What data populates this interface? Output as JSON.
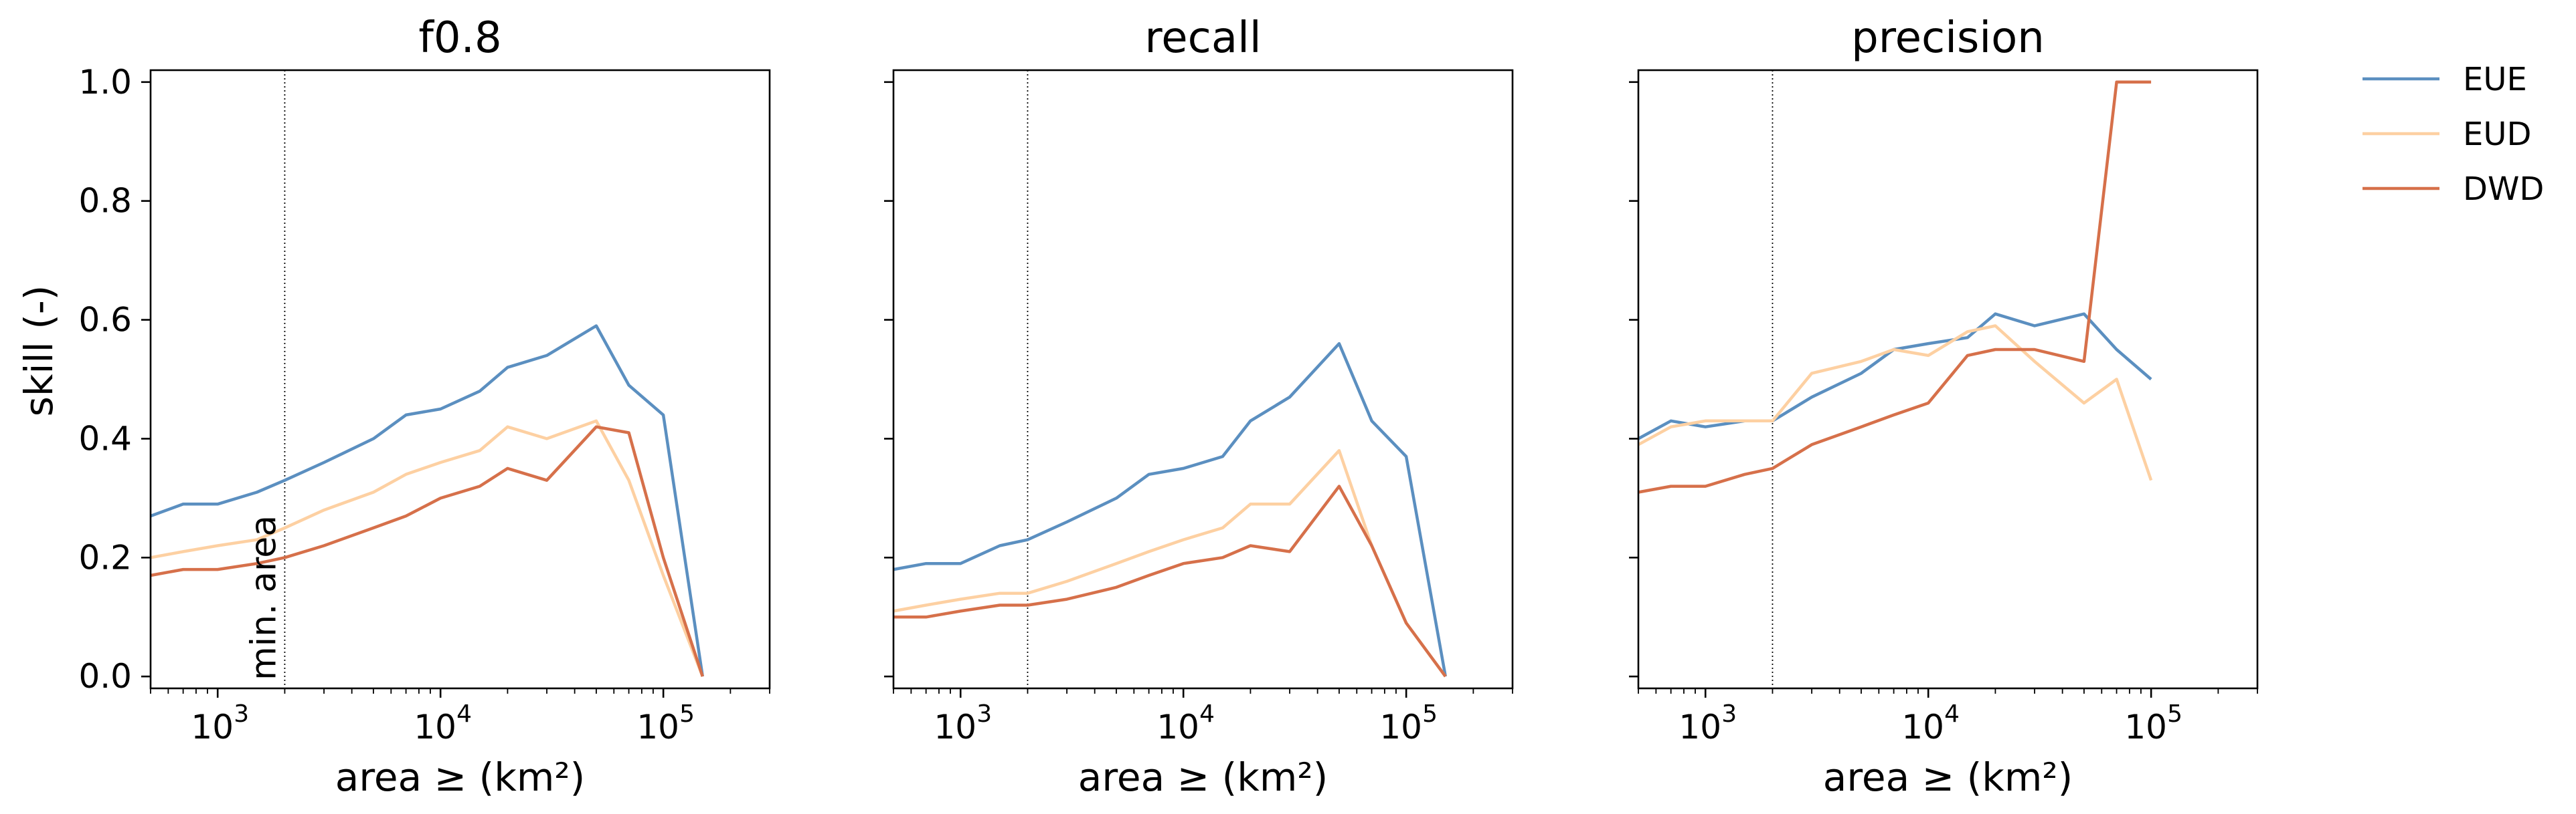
{
  "chart_data": {
    "type": "line",
    "x_axis": {
      "label": "area ≥ (km²)",
      "scale": "log",
      "range": [
        500,
        300000
      ],
      "ticks": [
        1000,
        10000,
        100000
      ],
      "tick_labels": [
        "10",
        "10",
        "10"
      ],
      "tick_exponents": [
        "3",
        "4",
        "5"
      ]
    },
    "y_axis": {
      "label": "skill (-)",
      "range": [
        -0.02,
        1.02
      ],
      "ticks": [
        0.0,
        0.2,
        0.4,
        0.6,
        0.8,
        1.0
      ],
      "tick_labels": [
        "0.0",
        "0.2",
        "0.4",
        "0.6",
        "0.8",
        "1.0"
      ]
    },
    "min_area_line": {
      "x": 2000,
      "label": "min. area"
    },
    "grid": false,
    "legend": {
      "placement": "outside-right"
    },
    "colors": {
      "EUE": "#5b8fc0",
      "EUD": "#fdd0a2",
      "DWD": "#d6704a"
    },
    "panels": [
      {
        "title": "f0.8",
        "series": [
          {
            "name": "EUE",
            "x": [
              500,
              700,
              1000,
              1500,
              2000,
              3000,
              5000,
              7000,
              10000,
              15000,
              20000,
              30000,
              50000,
              70000,
              100000,
              150000
            ],
            "y": [
              0.27,
              0.29,
              0.29,
              0.31,
              0.33,
              0.36,
              0.4,
              0.44,
              0.45,
              0.48,
              0.52,
              0.54,
              0.59,
              0.49,
              0.44,
              0.0
            ]
          },
          {
            "name": "EUD",
            "x": [
              500,
              700,
              1000,
              1500,
              2000,
              3000,
              5000,
              7000,
              10000,
              15000,
              20000,
              30000,
              50000,
              70000,
              100000,
              150000
            ],
            "y": [
              0.2,
              0.21,
              0.22,
              0.23,
              0.25,
              0.28,
              0.31,
              0.34,
              0.36,
              0.38,
              0.42,
              0.4,
              0.43,
              0.33,
              0.17,
              0.0
            ]
          },
          {
            "name": "DWD",
            "x": [
              500,
              700,
              1000,
              1500,
              2000,
              3000,
              5000,
              7000,
              10000,
              15000,
              20000,
              30000,
              50000,
              70000,
              100000,
              150000
            ],
            "y": [
              0.17,
              0.18,
              0.18,
              0.19,
              0.2,
              0.22,
              0.25,
              0.27,
              0.3,
              0.32,
              0.35,
              0.33,
              0.42,
              0.41,
              0.2,
              0.0
            ]
          }
        ]
      },
      {
        "title": "recall",
        "series": [
          {
            "name": "EUE",
            "x": [
              500,
              700,
              1000,
              1500,
              2000,
              3000,
              5000,
              7000,
              10000,
              15000,
              20000,
              30000,
              50000,
              70000,
              100000,
              150000
            ],
            "y": [
              0.18,
              0.19,
              0.19,
              0.22,
              0.23,
              0.26,
              0.3,
              0.34,
              0.35,
              0.37,
              0.43,
              0.47,
              0.56,
              0.43,
              0.37,
              0.0
            ]
          },
          {
            "name": "EUD",
            "x": [
              500,
              700,
              1000,
              1500,
              2000,
              3000,
              5000,
              7000,
              10000,
              15000,
              20000,
              30000,
              50000,
              70000,
              100000,
              150000
            ],
            "y": [
              0.11,
              0.12,
              0.13,
              0.14,
              0.14,
              0.16,
              0.19,
              0.21,
              0.23,
              0.25,
              0.29,
              0.29,
              0.38,
              0.22,
              0.09,
              0.0
            ]
          },
          {
            "name": "DWD",
            "x": [
              500,
              700,
              1000,
              1500,
              2000,
              3000,
              5000,
              7000,
              10000,
              15000,
              20000,
              30000,
              50000,
              70000,
              100000,
              150000
            ],
            "y": [
              0.1,
              0.1,
              0.11,
              0.12,
              0.12,
              0.13,
              0.15,
              0.17,
              0.19,
              0.2,
              0.22,
              0.21,
              0.32,
              0.22,
              0.09,
              0.0
            ]
          }
        ]
      },
      {
        "title": "precision",
        "series": [
          {
            "name": "EUE",
            "x": [
              500,
              700,
              1000,
              1500,
              2000,
              3000,
              5000,
              7000,
              10000,
              15000,
              20000,
              30000,
              50000,
              70000,
              100000
            ],
            "y": [
              0.4,
              0.43,
              0.42,
              0.43,
              0.43,
              0.47,
              0.51,
              0.55,
              0.56,
              0.57,
              0.61,
              0.59,
              0.61,
              0.55,
              0.5
            ]
          },
          {
            "name": "EUD",
            "x": [
              500,
              700,
              1000,
              1500,
              2000,
              3000,
              5000,
              7000,
              10000,
              15000,
              20000,
              30000,
              50000,
              70000,
              100000
            ],
            "y": [
              0.39,
              0.42,
              0.43,
              0.43,
              0.43,
              0.51,
              0.53,
              0.55,
              0.54,
              0.58,
              0.59,
              0.53,
              0.46,
              0.5,
              0.33
            ]
          },
          {
            "name": "DWD",
            "x": [
              500,
              700,
              1000,
              1500,
              2000,
              3000,
              5000,
              7000,
              10000,
              15000,
              20000,
              30000,
              50000,
              70000,
              100000
            ],
            "y": [
              0.31,
              0.32,
              0.32,
              0.34,
              0.35,
              0.39,
              0.42,
              0.44,
              0.46,
              0.54,
              0.55,
              0.55,
              0.53,
              1.0,
              1.0
            ]
          }
        ]
      }
    ]
  }
}
